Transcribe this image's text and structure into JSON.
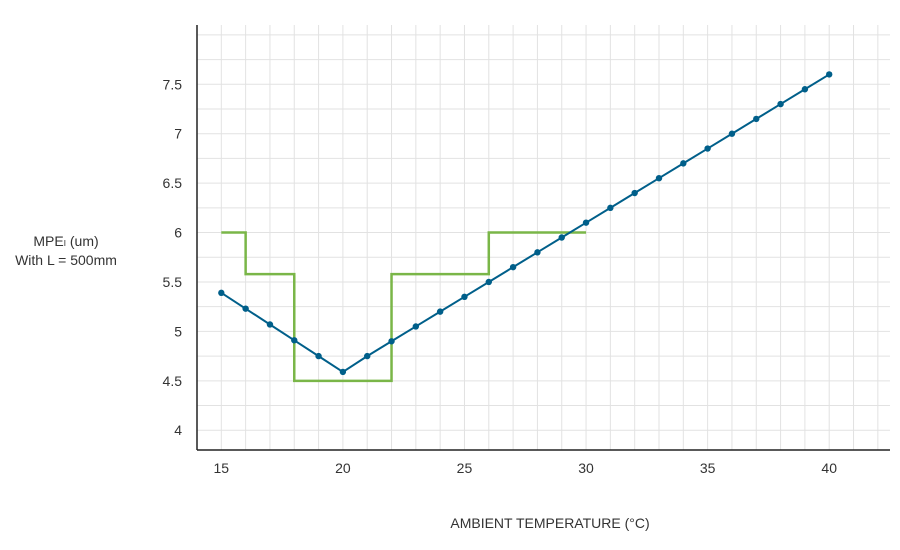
{
  "chart_data": {
    "type": "line",
    "title": "",
    "ylabel": [
      "MPEₗ (um)",
      "With L = 500mm"
    ],
    "xlabel": "AMBIENT TEMPERATURE (°C)",
    "xlim": [
      14,
      42.5
    ],
    "ylim": [
      3.8,
      8.1
    ],
    "xticks": [
      15,
      20,
      25,
      30,
      35,
      40
    ],
    "yticks": [
      4,
      4.5,
      5,
      5.5,
      6,
      6.5,
      7,
      7.5
    ],
    "grid": true,
    "series": [
      {
        "name": "",
        "style": "step",
        "color": "#7ab648",
        "points": [
          [
            15,
            6.0
          ],
          [
            16,
            6.0
          ],
          [
            16,
            5.58
          ],
          [
            18,
            5.58
          ],
          [
            18,
            4.5
          ],
          [
            22,
            4.5
          ],
          [
            22,
            5.58
          ],
          [
            26,
            5.58
          ],
          [
            26,
            6.0
          ],
          [
            30,
            6.0
          ]
        ]
      },
      {
        "name": "",
        "style": "line-markers",
        "color": "#005f8a",
        "x": [
          15,
          16,
          17,
          18,
          19,
          20,
          21,
          22,
          23,
          24,
          25,
          26,
          27,
          28,
          29,
          30,
          31,
          32,
          33,
          34,
          35,
          36,
          37,
          38,
          39,
          40
        ],
        "y": [
          5.39,
          5.23,
          5.07,
          4.91,
          4.75,
          4.59,
          4.75,
          4.9,
          5.05,
          5.2,
          5.35,
          5.5,
          5.65,
          5.8,
          5.95,
          6.1,
          6.25,
          6.4,
          6.55,
          6.7,
          6.85,
          7.0,
          7.15,
          7.3,
          7.45,
          7.6
        ]
      }
    ]
  }
}
